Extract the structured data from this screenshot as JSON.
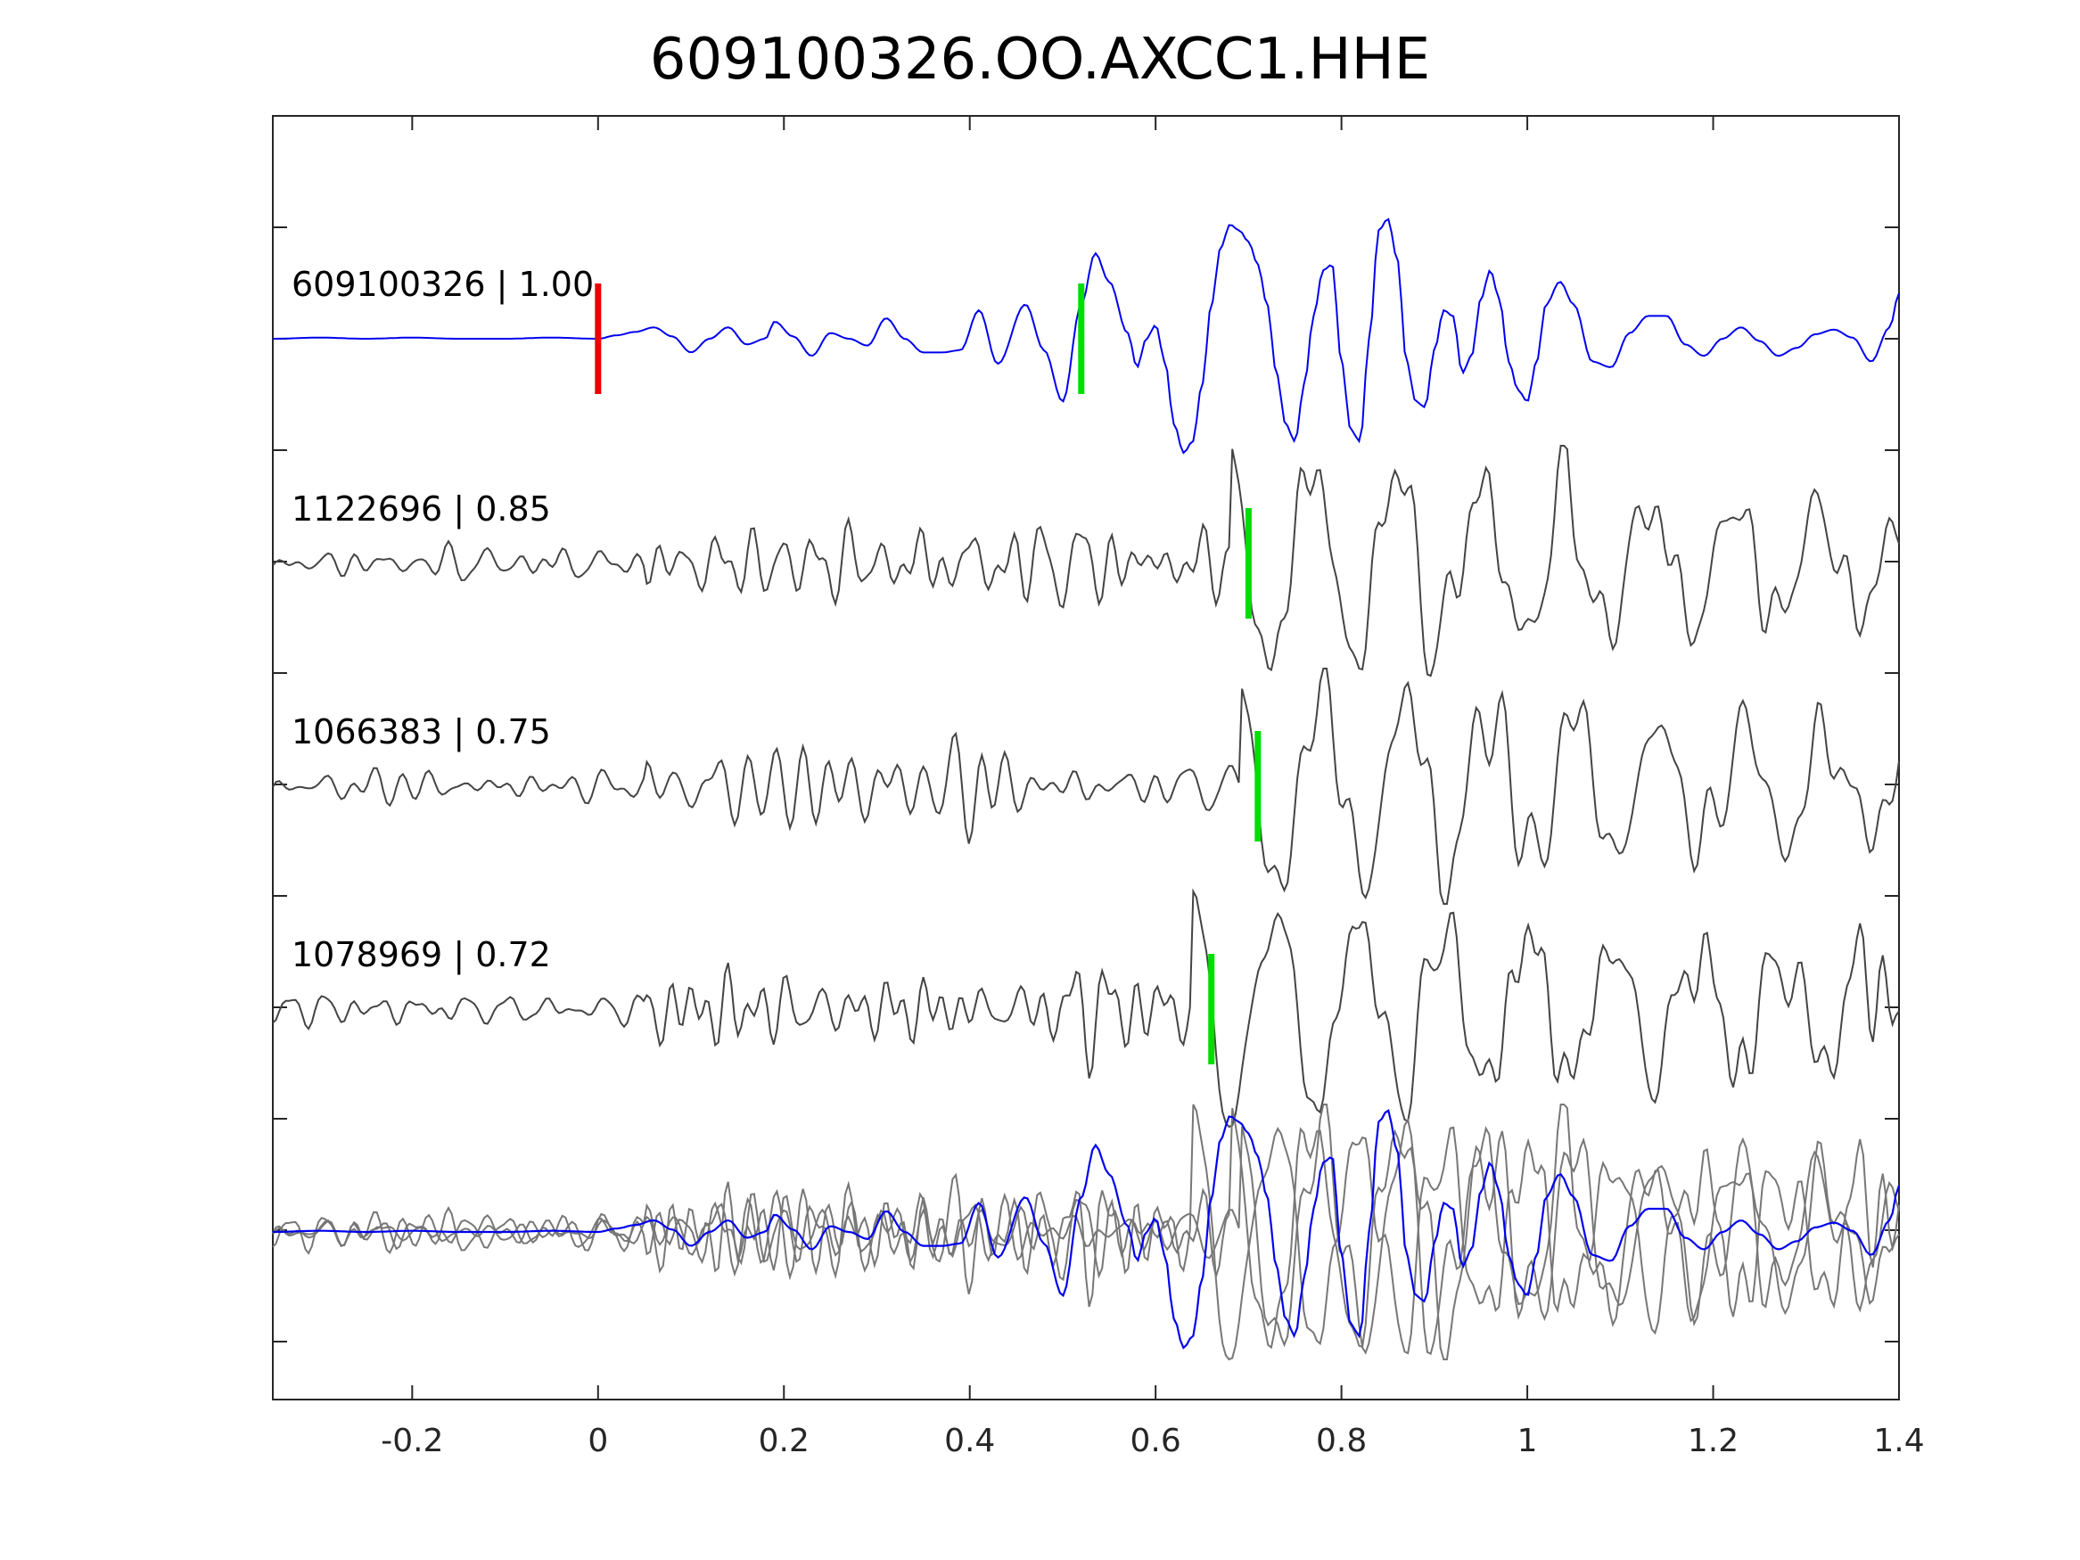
{
  "chart_data": {
    "type": "line",
    "title": "609100326.OO.AXCC1.HHE",
    "xlabel": "",
    "ylabel": "",
    "xlim": [
      -0.35,
      1.4
    ],
    "x_ticks": [
      -0.2,
      0,
      0.2,
      0.4,
      0.6,
      0.8,
      1,
      1.2,
      1.4
    ],
    "x_tick_labels": [
      "-0.2",
      "0",
      "0.2",
      "0.4",
      "0.6",
      "0.8",
      "1",
      "1.2",
      "1.4"
    ],
    "y_tick_count": 12,
    "grid": false,
    "legend": "none",
    "colors": {
      "master": "#0000ee",
      "neighbor": "#444444",
      "overlay_neighbor": "#777777",
      "p_pick": "#ee0000",
      "s_pick": "#00dd00",
      "axis": "#262626"
    },
    "traces": [
      {
        "label": "609100326 | 1.00",
        "event_id": "609100326",
        "correlation": 1.0,
        "role": "master",
        "s_pick": 0.52,
        "p_pick": 0.0
      },
      {
        "label": "1122696 | 0.85",
        "event_id": "1122696",
        "correlation": 0.85,
        "role": "neighbor",
        "s_pick": 0.7
      },
      {
        "label": "1066383 | 0.75",
        "event_id": "1066383",
        "correlation": 0.75,
        "role": "neighbor",
        "s_pick": 0.71
      },
      {
        "label": "1078969 | 0.72",
        "event_id": "1078969",
        "correlation": 0.72,
        "role": "neighbor",
        "s_pick": 0.66
      }
    ],
    "overlay": {
      "description": "",
      "shows": "all traces superimposed"
    },
    "waveform_master": [
      [
        -0.35,
        0.0
      ],
      [
        -0.3,
        0.01
      ],
      [
        -0.25,
        0.0
      ],
      [
        -0.2,
        0.01
      ],
      [
        -0.15,
        0.0
      ],
      [
        -0.1,
        0.0
      ],
      [
        -0.05,
        0.01
      ],
      [
        0.0,
        0.0
      ],
      [
        0.02,
        0.03
      ],
      [
        0.04,
        0.06
      ],
      [
        0.06,
        0.1
      ],
      [
        0.08,
        0.02
      ],
      [
        0.1,
        -0.12
      ],
      [
        0.12,
        0.0
      ],
      [
        0.14,
        0.1
      ],
      [
        0.16,
        -0.05
      ],
      [
        0.18,
        0.0
      ],
      [
        0.19,
        0.15
      ],
      [
        0.21,
        0.02
      ],
      [
        0.23,
        -0.15
      ],
      [
        0.25,
        0.05
      ],
      [
        0.27,
        0.0
      ],
      [
        0.29,
        -0.06
      ],
      [
        0.31,
        0.18
      ],
      [
        0.33,
        0.0
      ],
      [
        0.35,
        -0.12
      ],
      [
        0.37,
        -0.12
      ],
      [
        0.39,
        -0.1
      ],
      [
        0.41,
        0.25
      ],
      [
        0.43,
        -0.22
      ],
      [
        0.46,
        0.3
      ],
      [
        0.48,
        -0.1
      ],
      [
        0.5,
        -0.55
      ],
      [
        0.52,
        0.3
      ],
      [
        0.535,
        0.75
      ],
      [
        0.55,
        0.5
      ],
      [
        0.57,
        0.05
      ],
      [
        0.58,
        -0.25
      ],
      [
        0.59,
        0.0
      ],
      [
        0.6,
        0.12
      ],
      [
        0.61,
        -0.2
      ],
      [
        0.62,
        -0.75
      ],
      [
        0.63,
        -1.0
      ],
      [
        0.64,
        -0.9
      ],
      [
        0.65,
        -0.4
      ],
      [
        0.66,
        0.3
      ],
      [
        0.67,
        0.8
      ],
      [
        0.68,
        1.0
      ],
      [
        0.69,
        0.95
      ],
      [
        0.7,
        0.85
      ],
      [
        0.71,
        0.65
      ],
      [
        0.72,
        0.3
      ],
      [
        0.73,
        -0.3
      ],
      [
        0.74,
        -0.75
      ],
      [
        0.75,
        -0.9
      ],
      [
        0.76,
        -0.4
      ],
      [
        0.77,
        0.2
      ],
      [
        0.78,
        0.6
      ],
      [
        0.79,
        0.65
      ],
      [
        0.8,
        -0.2
      ],
      [
        0.81,
        -0.8
      ],
      [
        0.82,
        -0.9
      ],
      [
        0.83,
        0.0
      ],
      [
        0.84,
        0.95
      ],
      [
        0.85,
        1.05
      ],
      [
        0.86,
        0.7
      ],
      [
        0.87,
        -0.2
      ],
      [
        0.88,
        -0.55
      ],
      [
        0.89,
        -0.6
      ],
      [
        0.9,
        -0.1
      ],
      [
        0.91,
        0.25
      ],
      [
        0.92,
        0.2
      ],
      [
        0.93,
        -0.3
      ],
      [
        0.94,
        -0.15
      ],
      [
        0.95,
        0.35
      ],
      [
        0.96,
        0.6
      ],
      [
        0.97,
        0.35
      ],
      [
        0.98,
        -0.2
      ],
      [
        0.99,
        -0.45
      ],
      [
        1.0,
        -0.55
      ],
      [
        1.01,
        -0.2
      ],
      [
        1.02,
        0.3
      ],
      [
        1.035,
        0.5
      ],
      [
        1.05,
        0.3
      ],
      [
        1.07,
        -0.2
      ],
      [
        1.09,
        -0.25
      ],
      [
        1.11,
        0.05
      ],
      [
        1.13,
        0.2
      ],
      [
        1.15,
        0.2
      ],
      [
        1.17,
        -0.05
      ],
      [
        1.19,
        -0.15
      ],
      [
        1.21,
        0.0
      ],
      [
        1.23,
        0.1
      ],
      [
        1.25,
        -0.02
      ],
      [
        1.27,
        -0.15
      ],
      [
        1.29,
        -0.08
      ],
      [
        1.31,
        0.04
      ],
      [
        1.33,
        0.08
      ],
      [
        1.35,
        0.01
      ],
      [
        1.37,
        -0.2
      ],
      [
        1.39,
        0.1
      ],
      [
        1.4,
        0.4
      ]
    ]
  }
}
